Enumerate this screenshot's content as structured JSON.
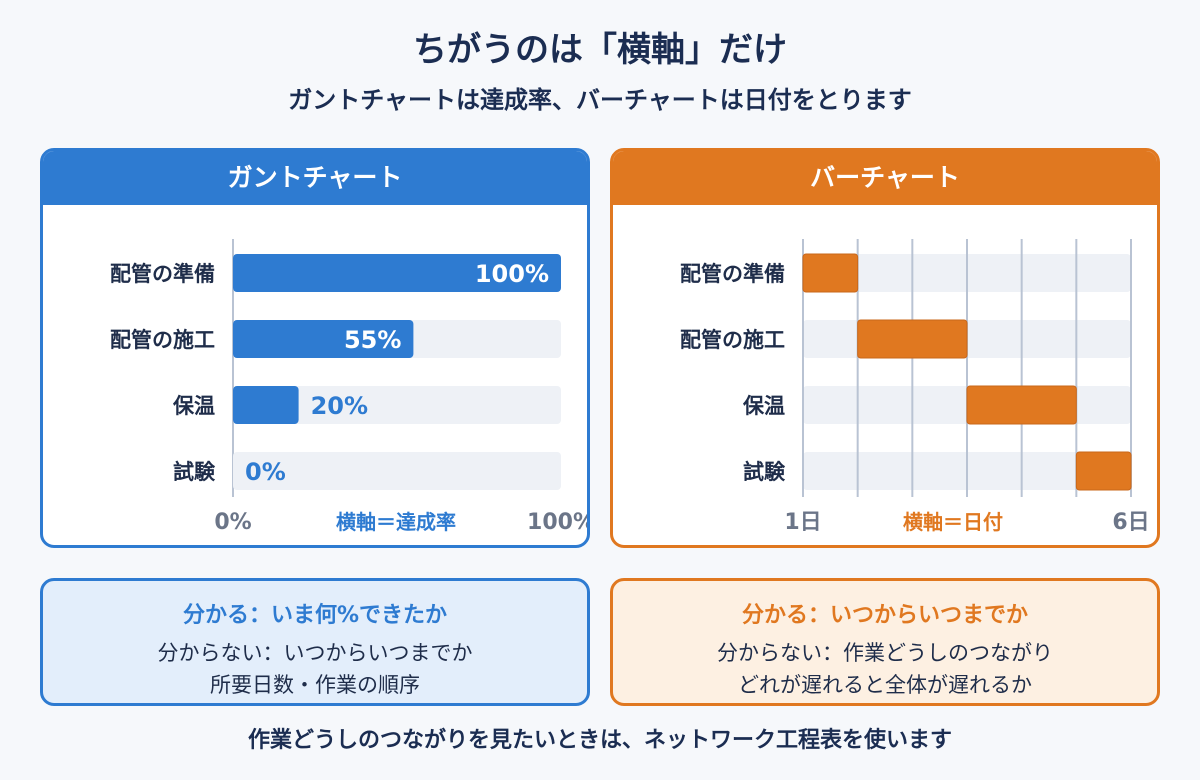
{
  "title": "ちがうのは「横軸」だけ",
  "subtitle": "ガントチャートは達成率、バーチャートは日付をとります",
  "gantt": {
    "header": "ガントチャート",
    "axis_label": "横軸＝達成率",
    "color": "#2e7bd1"
  },
  "barchart": {
    "header": "バーチャート",
    "axis_label": "横軸＝日付",
    "color": "#e07820"
  },
  "info_left": {
    "head": "分かる：いま何%できたか",
    "line1": "分からない：いつからいつまでか",
    "line2": "所要日数・作業の順序"
  },
  "info_right": {
    "head": "分かる：いつからいつまでか",
    "line1": "分からない：作業どうしのつながり",
    "line2": "どれが遅れると全体が遅れるか"
  },
  "footer": "作業どうしのつながりを見たいときは、ネットワーク工程表を使います",
  "chart_data": [
    {
      "type": "bar",
      "categories": [
        "配管の準備",
        "配管の施工",
        "保温",
        "試験"
      ],
      "values": [
        100,
        55,
        20,
        0
      ],
      "value_labels": [
        "100%",
        "55%",
        "20%",
        "0%"
      ],
      "xlim": [
        0,
        100
      ],
      "tick_labels": [
        "0%",
        "100%"
      ],
      "xlabel": "横軸＝達成率"
    },
    {
      "type": "bar",
      "categories": [
        "配管の準備",
        "配管の施工",
        "保温",
        "試験"
      ],
      "ranges": [
        [
          1,
          2
        ],
        [
          2,
          4
        ],
        [
          4,
          6
        ],
        [
          6,
          7
        ]
      ],
      "xlim": [
        1,
        7
      ],
      "tick_labels": [
        "1日",
        "6日"
      ],
      "xlabel": "横軸＝日付",
      "grid": true
    }
  ]
}
